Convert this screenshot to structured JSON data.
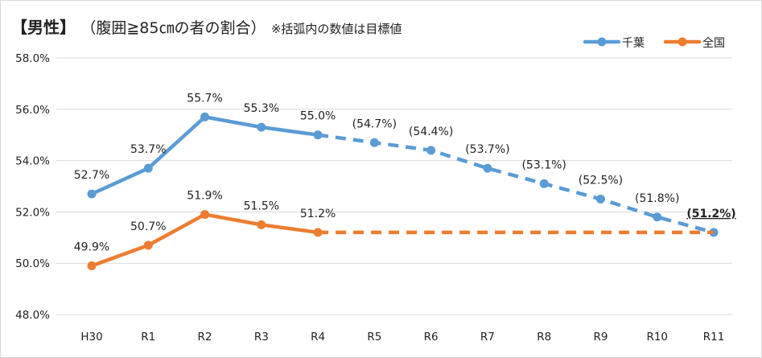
{
  "chart_data": {
    "type": "line",
    "title": "【男性】",
    "subtitle": "（腹囲≧85㎝の者の割合）",
    "note": "※括弧内の数値は目標値",
    "categories": [
      "H30",
      "R1",
      "R2",
      "R3",
      "R4",
      "R5",
      "R6",
      "R7",
      "R8",
      "R9",
      "R10",
      "R11"
    ],
    "ylim": [
      48.0,
      58.0
    ],
    "yticks": [
      "48.0%",
      "50.0%",
      "52.0%",
      "54.0%",
      "56.0%",
      "58.0%"
    ],
    "ytick_values": [
      48,
      50,
      52,
      54,
      56,
      58
    ],
    "grid": true,
    "legend_position": "top-right",
    "series": [
      {
        "name": "千葉",
        "color": "#5b9bd5",
        "values": [
          52.7,
          53.7,
          55.7,
          55.3,
          55.0,
          54.7,
          54.4,
          53.7,
          53.1,
          52.5,
          51.8,
          51.2
        ],
        "labels": [
          "52.7%",
          "53.7%",
          "55.7%",
          "55.3%",
          "55.0%",
          "(54.7%)",
          "(54.4%)",
          "(53.7%)",
          "(53.1%)",
          "(52.5%)",
          "(51.8%)",
          "(51.2%)"
        ],
        "actual_until": "R4",
        "dashed_from": "R4",
        "markers": "all",
        "emphasized_label": "R11"
      },
      {
        "name": "全国",
        "color": "#ed7d31",
        "values": [
          49.9,
          50.7,
          51.9,
          51.5,
          51.2,
          51.2,
          51.2,
          51.2,
          51.2,
          51.2,
          51.2,
          51.2
        ],
        "labels": [
          "49.9%",
          "50.7%",
          "51.9%",
          "51.5%",
          "51.2%"
        ],
        "actual_until": "R4",
        "dashed_from": "R4",
        "markers": "actual-only"
      }
    ]
  }
}
